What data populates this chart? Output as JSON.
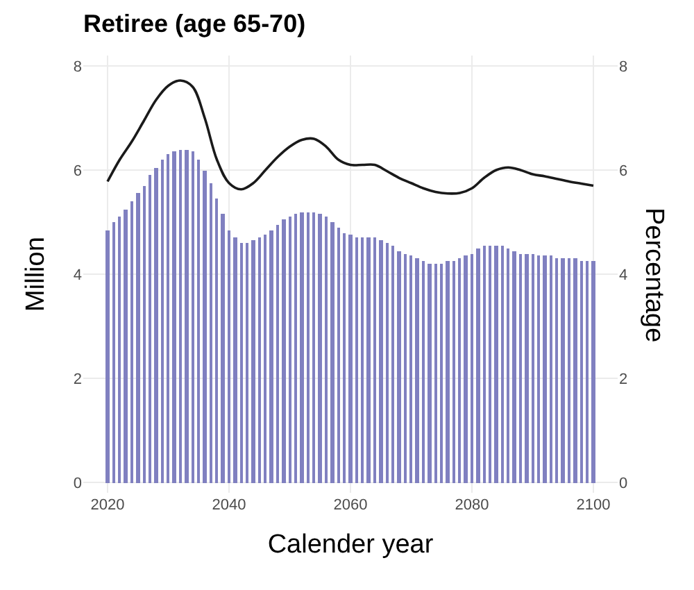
{
  "chart_data": {
    "type": "bar",
    "title": "Retiree (age 65-70)",
    "xlabel": "Calender year",
    "ylabel": "Million",
    "y2label": "Percentage",
    "x": [
      2020,
      2021,
      2022,
      2023,
      2024,
      2025,
      2026,
      2027,
      2028,
      2029,
      2030,
      2031,
      2032,
      2033,
      2034,
      2035,
      2036,
      2037,
      2038,
      2039,
      2040,
      2041,
      2042,
      2043,
      2044,
      2045,
      2046,
      2047,
      2048,
      2049,
      2050,
      2051,
      2052,
      2053,
      2054,
      2055,
      2056,
      2057,
      2058,
      2059,
      2060,
      2061,
      2062,
      2063,
      2064,
      2065,
      2066,
      2067,
      2068,
      2069,
      2070,
      2071,
      2072,
      2073,
      2074,
      2075,
      2076,
      2077,
      2078,
      2079,
      2080,
      2081,
      2082,
      2083,
      2084,
      2085,
      2086,
      2087,
      2088,
      2089,
      2090,
      2091,
      2092,
      2093,
      2094,
      2095,
      2096,
      2097,
      2098,
      2099,
      2100
    ],
    "series": [
      {
        "color": "#8080c0",
        "values": [
          4.85,
          5.0,
          5.1,
          5.25,
          5.4,
          5.55,
          5.7,
          5.9,
          6.05,
          6.2,
          6.3,
          6.35,
          6.4,
          6.4,
          6.35,
          6.2,
          6.0,
          5.75,
          5.45,
          5.15,
          4.85,
          4.7,
          4.6,
          4.6,
          4.65,
          4.7,
          4.75,
          4.85,
          4.95,
          5.05,
          5.1,
          5.15,
          5.2,
          5.2,
          5.2,
          5.15,
          5.1,
          5.0,
          4.9,
          4.8,
          4.75,
          4.7,
          4.7,
          4.7,
          4.7,
          4.65,
          4.6,
          4.55,
          4.45,
          4.4,
          4.35,
          4.3,
          4.25,
          4.2,
          4.2,
          4.2,
          4.25,
          4.25,
          4.3,
          4.35,
          4.4,
          4.5,
          4.55,
          4.55,
          4.55,
          4.55,
          4.5,
          4.45,
          4.4,
          4.4,
          4.4,
          4.35,
          4.35,
          4.35,
          4.3,
          4.3,
          4.3,
          4.3,
          4.25,
          4.25,
          4.25
        ]
      },
      {
        "type": "line",
        "axis": "y2",
        "color": "#1a1a1a",
        "x": [
          2020,
          2022,
          2024,
          2026,
          2028,
          2030,
          2032,
          2034,
          2036,
          2038,
          2040,
          2042,
          2044,
          2046,
          2048,
          2050,
          2052,
          2054,
          2056,
          2058,
          2060,
          2062,
          2064,
          2066,
          2068,
          2070,
          2072,
          2074,
          2076,
          2078,
          2080,
          2082,
          2084,
          2086,
          2088,
          2090,
          2092,
          2094,
          2096,
          2098,
          2100
        ],
        "values": [
          5.78,
          6.2,
          6.55,
          6.95,
          7.35,
          7.62,
          7.72,
          7.6,
          7.0,
          6.2,
          5.75,
          5.63,
          5.75,
          6.0,
          6.25,
          6.45,
          6.58,
          6.6,
          6.45,
          6.2,
          6.1,
          6.1,
          6.1,
          5.98,
          5.85,
          5.75,
          5.65,
          5.58,
          5.55,
          5.56,
          5.65,
          5.85,
          6.0,
          6.05,
          6.0,
          5.92,
          5.88,
          5.83,
          5.78,
          5.74,
          5.7
        ]
      }
    ],
    "xlim": [
      2016,
      2104
    ],
    "xticks": [
      2020,
      2040,
      2060,
      2080,
      2100
    ],
    "ylim": [
      -0.2,
      8.2
    ],
    "yticks": [
      0,
      2,
      4,
      6,
      8
    ],
    "y2lim": [
      -0.2,
      8.2
    ],
    "y2ticks": [
      0,
      2,
      4,
      6,
      8
    ],
    "grid": true
  }
}
